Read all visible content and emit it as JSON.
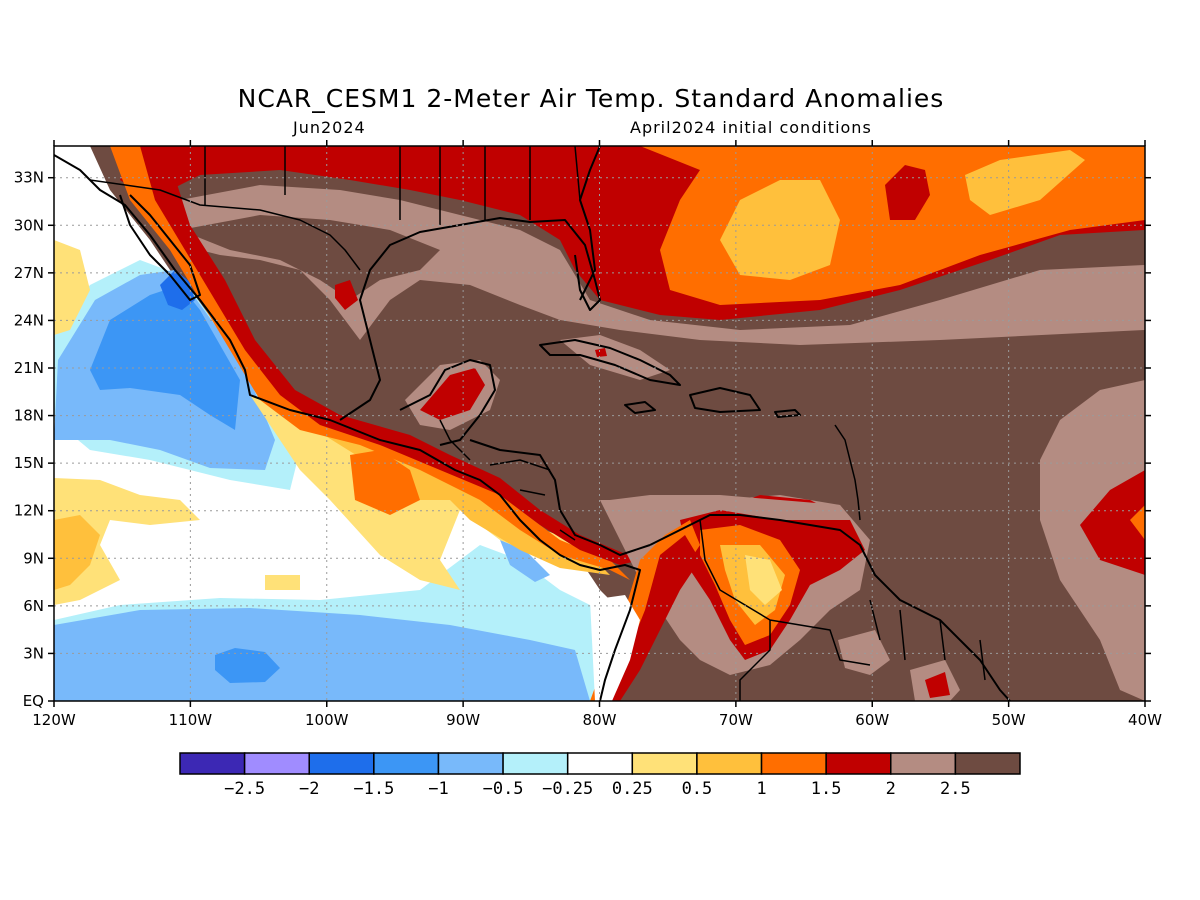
{
  "title": "NCAR_CESM1 2-Meter Air Temp. Standard Anomalies",
  "subtitle_left": "Jun2024",
  "subtitle_right": "April2024 initial conditions",
  "map": {
    "lon_range": [
      -120,
      -40
    ],
    "lat_range": [
      0,
      35
    ],
    "lon_ticks": [
      {
        "value": -120,
        "label": "120W"
      },
      {
        "value": -110,
        "label": "110W"
      },
      {
        "value": -100,
        "label": "100W"
      },
      {
        "value": -90,
        "label": "90W"
      },
      {
        "value": -80,
        "label": "80W"
      },
      {
        "value": -70,
        "label": "70W"
      },
      {
        "value": -60,
        "label": "60W"
      },
      {
        "value": -50,
        "label": "50W"
      },
      {
        "value": -40,
        "label": "40W"
      }
    ],
    "lat_ticks": [
      {
        "value": 0,
        "label": "EQ"
      },
      {
        "value": 3,
        "label": "3N"
      },
      {
        "value": 6,
        "label": "6N"
      },
      {
        "value": 9,
        "label": "9N"
      },
      {
        "value": 12,
        "label": "12N"
      },
      {
        "value": 15,
        "label": "15N"
      },
      {
        "value": 18,
        "label": "18N"
      },
      {
        "value": 21,
        "label": "21N"
      },
      {
        "value": 24,
        "label": "24N"
      },
      {
        "value": 27,
        "label": "27N"
      },
      {
        "value": 30,
        "label": "30N"
      },
      {
        "value": 33,
        "label": "33N"
      }
    ],
    "grid": "dotted"
  },
  "colorbar": {
    "colors": [
      "#3c28b4",
      "#a08cff",
      "#1e6eeb",
      "#3c96f5",
      "#78b9fa",
      "#b4f0fa",
      "#ffffff",
      "#ffe178",
      "#ffc03c",
      "#ff6e00",
      "#c00000",
      "#b48c82",
      "#6e4b41"
    ],
    "labels": [
      "-2.5",
      "-2",
      "-1.5",
      "-1",
      "-0.5",
      "-0.25",
      "0.25",
      "0.5",
      "1",
      "1.5",
      "2",
      "2.5"
    ]
  }
}
